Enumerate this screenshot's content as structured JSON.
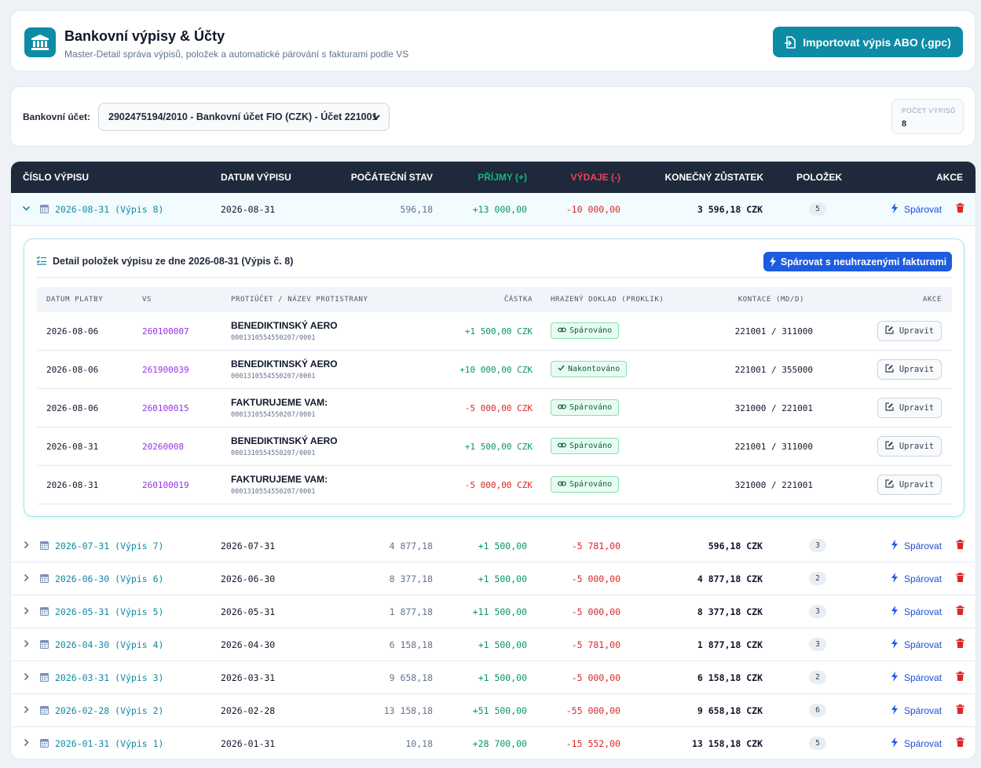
{
  "header": {
    "title": "Bankovní výpisy & Účty",
    "subtitle": "Master-Detail správa výpisů, položek a automatické párování s fakturami podle VS",
    "import_button": "Importovat výpis ABO (.gpc)",
    "logo_icon": "bank-icon"
  },
  "account": {
    "label": "Bankovní účet:",
    "selected": "2902475194/2010 - Bankovní účet FIO (CZK) - Účet 221001",
    "count_label": "POČET VÝPISŮ",
    "count_value": "8"
  },
  "table": {
    "columns": {
      "number": "ČÍSLO VÝPISU",
      "date": "DATUM VÝPISU",
      "start": "POČÁTEČNÍ STAV",
      "income": "PŘÍJMY (+)",
      "expense": "VÝDAJE (-)",
      "end": "KONEČNÝ ZŮSTATEK",
      "items": "POLOŽEK",
      "actions": "AKCE"
    },
    "pair_label": "Spárovat",
    "colors": {
      "header_bg": "#1e293b",
      "income": "#10b981",
      "expense": "#f43f5e",
      "accent": "#0e8ba5"
    },
    "statements": [
      {
        "name": "2026-08-31 (Výpis 8)",
        "date": "2026-08-31",
        "start": "596,18",
        "income": "+13 000,00",
        "expense": "-10 000,00",
        "end": "3 596,18 CZK",
        "items": "5"
      },
      {
        "name": "2026-07-31 (Výpis 7)",
        "date": "2026-07-31",
        "start": "4 877,18",
        "income": "+1 500,00",
        "expense": "-5 781,00",
        "end": "596,18 CZK",
        "items": "3"
      },
      {
        "name": "2026-06-30 (Výpis 6)",
        "date": "2026-06-30",
        "start": "8 377,18",
        "income": "+1 500,00",
        "expense": "-5 000,00",
        "end": "4 877,18 CZK",
        "items": "2"
      },
      {
        "name": "2026-05-31 (Výpis 5)",
        "date": "2026-05-31",
        "start": "1 877,18",
        "income": "+11 500,00",
        "expense": "-5 000,00",
        "end": "8 377,18 CZK",
        "items": "3"
      },
      {
        "name": "2026-04-30 (Výpis 4)",
        "date": "2026-04-30",
        "start": "6 158,18",
        "income": "+1 500,00",
        "expense": "-5 781,00",
        "end": "1 877,18 CZK",
        "items": "3"
      },
      {
        "name": "2026-03-31 (Výpis 3)",
        "date": "2026-03-31",
        "start": "9 658,18",
        "income": "+1 500,00",
        "expense": "-5 000,00",
        "end": "6 158,18 CZK",
        "items": "2"
      },
      {
        "name": "2026-02-28 (Výpis 2)",
        "date": "2026-02-28",
        "start": "13 158,18",
        "income": "+51 500,00",
        "expense": "-55 000,00",
        "end": "9 658,18 CZK",
        "items": "6"
      },
      {
        "name": "2026-01-31 (Výpis 1)",
        "date": "2026-01-31",
        "start": "10,18",
        "income": "+28 700,00",
        "expense": "-15 552,00",
        "end": "13 158,18 CZK",
        "items": "5"
      }
    ]
  },
  "detail": {
    "title": "Detail položek výpisu ze dne 2026-08-31 (Výpis č. 8)",
    "pair_button": "Spárovat s neuhrazenými fakturami",
    "columns": {
      "date": "DATUM PLATBY",
      "vs": "VS",
      "party": "PROTIÚČET / NÁZEV PROTISTRANY",
      "amount": "ČÁSTKA",
      "doc": "HRAZENÝ DOKLAD (PROKLIK)",
      "contra": "KONTACE (MD/D)",
      "actions": "AKCE"
    },
    "edit_label": "Upravit",
    "items": [
      {
        "date": "2026-08-06",
        "vs": "260100007",
        "party": "BENEDIKTINSKÝ AERO",
        "account": "0001310554550207/0001",
        "amount": "+1 500,00 CZK",
        "sign": "pos",
        "status": "Spárováno",
        "status_icon": "link-icon",
        "contra": "221001 / 311000"
      },
      {
        "date": "2026-08-06",
        "vs": "261900039",
        "party": "BENEDIKTINSKÝ AERO",
        "account": "0001310554550207/0001",
        "amount": "+10 000,00 CZK",
        "sign": "pos",
        "status": "Nakontováno",
        "status_icon": "check-icon",
        "contra": "221001 / 355000"
      },
      {
        "date": "2026-08-06",
        "vs": "260100015",
        "party": "FAKTURUJEME VAM:",
        "account": "0001310554550207/0001",
        "amount": "-5 000,00 CZK",
        "sign": "neg",
        "status": "Spárováno",
        "status_icon": "link-icon",
        "contra": "321000 / 221001"
      },
      {
        "date": "2026-08-31",
        "vs": "20260008",
        "party": "BENEDIKTINSKÝ AERO",
        "account": "0001310554550207/0001",
        "amount": "+1 500,00 CZK",
        "sign": "pos",
        "status": "Spárováno",
        "status_icon": "link-icon",
        "contra": "221001 / 311000"
      },
      {
        "date": "2026-08-31",
        "vs": "260100019",
        "party": "FAKTURUJEME VAM:",
        "account": "0001310554550207/0001",
        "amount": "-5 000,00 CZK",
        "sign": "neg",
        "status": "Spárováno",
        "status_icon": "link-icon",
        "contra": "321000 / 221001"
      }
    ]
  }
}
